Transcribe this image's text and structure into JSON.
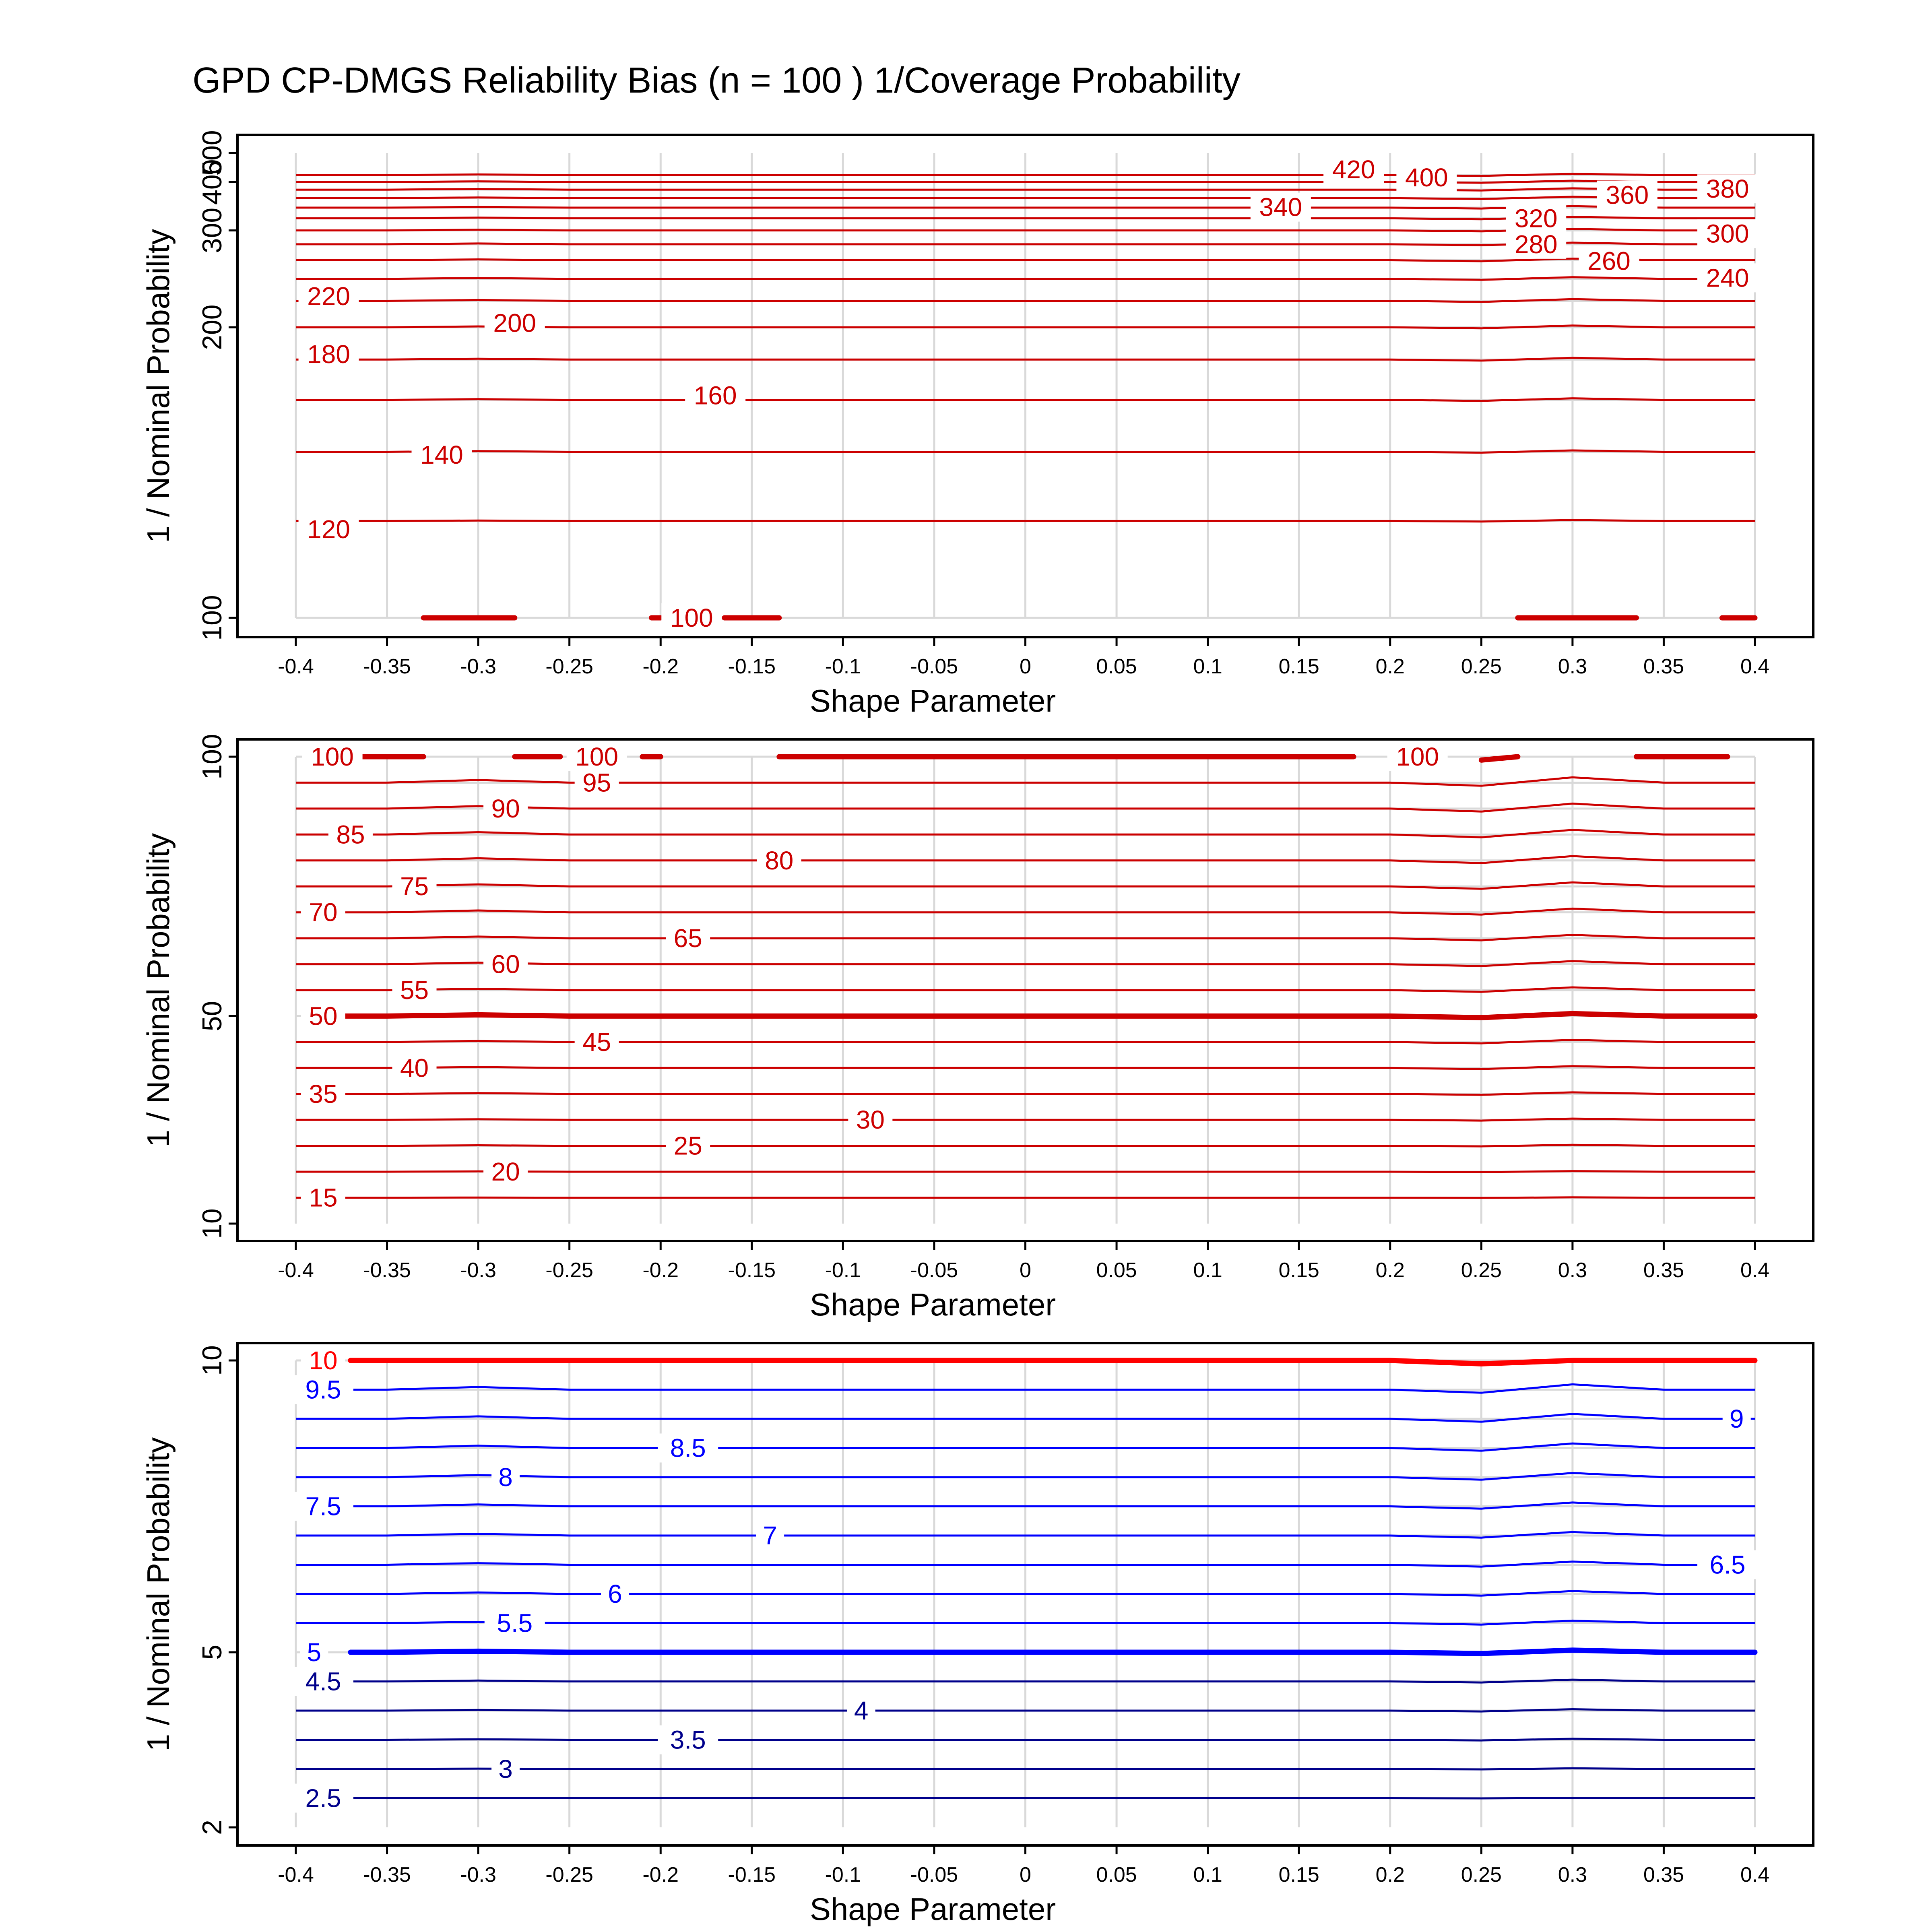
{
  "title": "GPD CP-DMGS Reliability Bias (n = 100 ) 1/Coverage Probability",
  "colors": {
    "grid": "#d9d9d9",
    "frame": "#000000",
    "red": "#cc0000",
    "bright_red": "#ff0000",
    "blue": "#0000ff",
    "dark_blue": "#00008b"
  },
  "chart_data": [
    {
      "type": "contour",
      "xlabel": "Shape Parameter",
      "ylabel": "1 / Nominal Probability",
      "x_ticks": [
        "-0.4",
        "-0.35",
        "-0.3",
        "-0.25",
        "-0.2",
        "-0.15",
        "-0.1",
        "-0.05",
        "0",
        "0.05",
        "0.1",
        "0.15",
        "0.2",
        "0.25",
        "0.3",
        "0.35",
        "0.4"
      ],
      "y_ticks": [
        "100",
        "200",
        "300",
        "400",
        "500"
      ],
      "xlim": [
        -0.4,
        0.4
      ],
      "ylim": [
        100,
        500
      ],
      "y_scale": "reciprocal",
      "grid": true,
      "contour_levels": [
        100,
        120,
        140,
        160,
        180,
        200,
        220,
        240,
        260,
        280,
        300,
        320,
        340,
        360,
        380,
        400,
        420
      ],
      "contour_labels": [
        {
          "text": "100",
          "x": -0.183,
          "y": 100
        },
        {
          "text": "120",
          "x": -0.382,
          "y": 118
        },
        {
          "text": "140",
          "x": -0.32,
          "y": 139
        },
        {
          "text": "160",
          "x": -0.17,
          "y": 162
        },
        {
          "text": "180",
          "x": -0.382,
          "y": 183
        },
        {
          "text": "200",
          "x": -0.28,
          "y": 203
        },
        {
          "text": "220",
          "x": -0.382,
          "y": 224
        },
        {
          "text": "240",
          "x": 0.385,
          "y": 241
        },
        {
          "text": "260",
          "x": 0.32,
          "y": 259
        },
        {
          "text": "280",
          "x": 0.28,
          "y": 280
        },
        {
          "text": "300",
          "x": 0.385,
          "y": 295
        },
        {
          "text": "320",
          "x": 0.28,
          "y": 320
        },
        {
          "text": "340",
          "x": 0.14,
          "y": 341
        },
        {
          "text": "360",
          "x": 0.33,
          "y": 367
        },
        {
          "text": "380",
          "x": 0.385,
          "y": 382
        },
        {
          "text": "400",
          "x": 0.22,
          "y": 413
        },
        {
          "text": "420",
          "x": 0.18,
          "y": 438
        }
      ],
      "thick_segments": [
        {
          "level": 100,
          "x": [
            -0.33,
            -0.28
          ]
        },
        {
          "level": 100,
          "x": [
            -0.205,
            -0.2
          ]
        },
        {
          "level": 100,
          "x": [
            -0.165,
            -0.135
          ]
        },
        {
          "level": 100,
          "x": [
            0.27,
            0.335
          ]
        },
        {
          "level": 100,
          "x": [
            0.382,
            0.4
          ]
        }
      ]
    },
    {
      "type": "contour",
      "xlabel": "Shape Parameter",
      "ylabel": "1 / Nominal Probability",
      "x_ticks": [
        "-0.4",
        "-0.35",
        "-0.3",
        "-0.25",
        "-0.2",
        "-0.15",
        "-0.1",
        "-0.05",
        "0",
        "0.05",
        "0.1",
        "0.15",
        "0.2",
        "0.25",
        "0.3",
        "0.35",
        "0.4"
      ],
      "y_ticks": [
        "10",
        "50",
        "100"
      ],
      "xlim": [
        -0.4,
        0.4
      ],
      "ylim": [
        10,
        100
      ],
      "y_scale": "linear",
      "grid": true,
      "contour_levels": [
        15,
        20,
        25,
        30,
        35,
        40,
        45,
        50,
        55,
        60,
        65,
        70,
        75,
        80,
        85,
        90,
        95,
        100
      ],
      "contour_labels": [
        {
          "text": "15",
          "x": -0.385,
          "y": 15
        },
        {
          "text": "20",
          "x": -0.285,
          "y": 20
        },
        {
          "text": "25",
          "x": -0.185,
          "y": 25
        },
        {
          "text": "30",
          "x": -0.085,
          "y": 30
        },
        {
          "text": "35",
          "x": -0.385,
          "y": 35
        },
        {
          "text": "40",
          "x": -0.335,
          "y": 40
        },
        {
          "text": "45",
          "x": -0.235,
          "y": 45
        },
        {
          "text": "50",
          "x": -0.385,
          "y": 50
        },
        {
          "text": "55",
          "x": -0.335,
          "y": 55
        },
        {
          "text": "60",
          "x": -0.285,
          "y": 60
        },
        {
          "text": "65",
          "x": -0.185,
          "y": 65
        },
        {
          "text": "70",
          "x": -0.385,
          "y": 70
        },
        {
          "text": "75",
          "x": -0.335,
          "y": 75
        },
        {
          "text": "80",
          "x": -0.135,
          "y": 80
        },
        {
          "text": "85",
          "x": -0.37,
          "y": 85
        },
        {
          "text": "90",
          "x": -0.285,
          "y": 90
        },
        {
          "text": "95",
          "x": -0.235,
          "y": 95
        },
        {
          "text": "100",
          "x": -0.38,
          "y": 100
        },
        {
          "text": "100",
          "x": -0.235,
          "y": 100
        },
        {
          "text": "100",
          "x": 0.215,
          "y": 100
        }
      ],
      "thick_segments": [
        {
          "level": 100,
          "x": [
            -0.365,
            -0.33
          ]
        },
        {
          "level": 100,
          "x": [
            -0.28,
            -0.255
          ]
        },
        {
          "level": 100,
          "x": [
            -0.21,
            -0.2
          ]
        },
        {
          "level": 100,
          "x": [
            -0.135,
            0.18
          ]
        },
        {
          "level": 100,
          "x": [
            0.25,
            0.27
          ]
        },
        {
          "level": 100,
          "x": [
            0.335,
            0.385
          ]
        },
        {
          "level": 50,
          "x": [
            -0.375,
            0.4
          ]
        }
      ]
    },
    {
      "type": "contour",
      "xlabel": "Shape Parameter",
      "ylabel": "1 / Nominal Probability",
      "x_ticks": [
        "-0.4",
        "-0.35",
        "-0.3",
        "-0.25",
        "-0.2",
        "-0.15",
        "-0.1",
        "-0.05",
        "0",
        "0.05",
        "0.1",
        "0.15",
        "0.2",
        "0.25",
        "0.3",
        "0.35",
        "0.4"
      ],
      "y_ticks": [
        "2",
        "5",
        "10"
      ],
      "xlim": [
        -0.4,
        0.4
      ],
      "ylim": [
        2,
        10
      ],
      "y_scale": "linear",
      "grid": true,
      "contour_levels": [
        2.5,
        3,
        3.5,
        4,
        4.5,
        5,
        5.5,
        6,
        6.5,
        7,
        7.5,
        8,
        8.5,
        9,
        9.5,
        10
      ],
      "contour_labels": [
        {
          "text": "2.5",
          "x": -0.385,
          "y": 2.5
        },
        {
          "text": "3",
          "x": -0.285,
          "y": 3
        },
        {
          "text": "3.5",
          "x": -0.185,
          "y": 3.5
        },
        {
          "text": "4",
          "x": -0.09,
          "y": 4
        },
        {
          "text": "4.5",
          "x": -0.385,
          "y": 4.5
        },
        {
          "text": "5",
          "x": -0.39,
          "y": 5
        },
        {
          "text": "5.5",
          "x": -0.28,
          "y": 5.5
        },
        {
          "text": "6",
          "x": -0.225,
          "y": 6
        },
        {
          "text": "6.5",
          "x": 0.385,
          "y": 6.5
        },
        {
          "text": "7",
          "x": -0.14,
          "y": 7
        },
        {
          "text": "7.5",
          "x": -0.385,
          "y": 7.5
        },
        {
          "text": "8",
          "x": -0.285,
          "y": 8
        },
        {
          "text": "8.5",
          "x": -0.185,
          "y": 8.5
        },
        {
          "text": "9",
          "x": 0.39,
          "y": 9
        },
        {
          "text": "9.5",
          "x": -0.385,
          "y": 9.5
        },
        {
          "text": "10",
          "x": -0.385,
          "y": 10
        }
      ],
      "thick_segments": [
        {
          "level": 5,
          "x": [
            -0.37,
            0.4
          ]
        },
        {
          "level": 10,
          "x": [
            -0.37,
            0.4
          ]
        }
      ]
    }
  ]
}
